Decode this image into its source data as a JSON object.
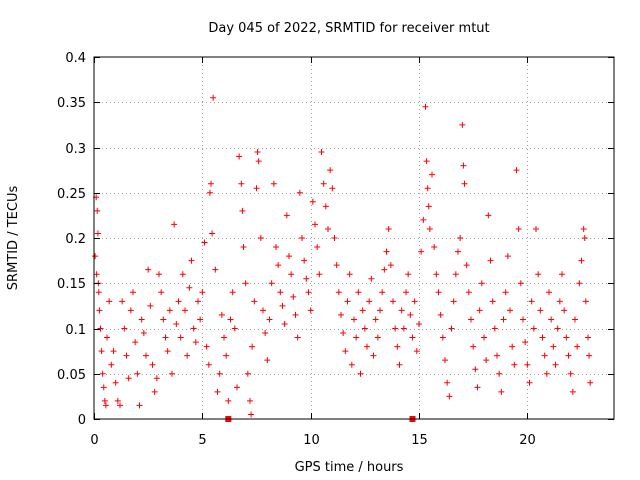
{
  "chart_data": {
    "type": "scatter",
    "title": "Day 045 of 2022, SRMTID for receiver mtut",
    "xlabel": "GPS time / hours",
    "ylabel": "SRMTID / TECUs",
    "xlim": [
      0,
      24
    ],
    "ylim": [
      0,
      0.4
    ],
    "xticks": [
      0,
      5,
      10,
      15,
      20
    ],
    "xtick_labels": [
      "0",
      "5",
      "10",
      "15",
      "20"
    ],
    "yticks": [
      0,
      0.05,
      0.1,
      0.15,
      0.2,
      0.25,
      0.3,
      0.35,
      0.4
    ],
    "ytick_labels": [
      "0",
      "0.05",
      "0.1",
      "0.15",
      "0.2",
      "0.25",
      "0.3",
      "0.35",
      "0.4"
    ],
    "grid": true,
    "legend": "none",
    "series": [
      {
        "color": "#ff0000",
        "marker": "plus",
        "points": [
          [
            0.05,
            0.18
          ],
          [
            0.1,
            0.245
          ],
          [
            0.12,
            0.16
          ],
          [
            0.15,
            0.23
          ],
          [
            0.18,
            0.205
          ],
          [
            0.2,
            0.15
          ],
          [
            0.22,
            0.14
          ],
          [
            0.25,
            0.12
          ],
          [
            0.3,
            0.1
          ],
          [
            0.35,
            0.075
          ],
          [
            0.4,
            0.05
          ],
          [
            0.45,
            0.035
          ],
          [
            0.5,
            0.02
          ],
          [
            0.55,
            0.015
          ],
          [
            0.6,
            0.09
          ],
          [
            0.7,
            0.13
          ],
          [
            0.8,
            0.06
          ],
          [
            0.9,
            0.075
          ],
          [
            1.0,
            0.04
          ],
          [
            1.1,
            0.02
          ],
          [
            1.2,
            0.015
          ],
          [
            1.3,
            0.13
          ],
          [
            1.4,
            0.1
          ],
          [
            1.5,
            0.07
          ],
          [
            1.6,
            0.045
          ],
          [
            1.7,
            0.12
          ],
          [
            1.8,
            0.14
          ],
          [
            1.9,
            0.085
          ],
          [
            2.0,
            0.05
          ],
          [
            2.1,
            0.015
          ],
          [
            2.2,
            0.11
          ],
          [
            2.3,
            0.095
          ],
          [
            2.4,
            0.07
          ],
          [
            2.5,
            0.165
          ],
          [
            2.6,
            0.125
          ],
          [
            2.7,
            0.06
          ],
          [
            2.8,
            0.03
          ],
          [
            2.9,
            0.045
          ],
          [
            3.0,
            0.16
          ],
          [
            3.1,
            0.14
          ],
          [
            3.2,
            0.11
          ],
          [
            3.3,
            0.09
          ],
          [
            3.4,
            0.075
          ],
          [
            3.5,
            0.12
          ],
          [
            3.6,
            0.05
          ],
          [
            3.7,
            0.215
          ],
          [
            3.8,
            0.105
          ],
          [
            3.9,
            0.13
          ],
          [
            4.0,
            0.09
          ],
          [
            4.1,
            0.16
          ],
          [
            4.2,
            0.12
          ],
          [
            4.3,
            0.07
          ],
          [
            4.4,
            0.145
          ],
          [
            4.5,
            0.175
          ],
          [
            4.6,
            0.1
          ],
          [
            4.7,
            0.085
          ],
          [
            4.8,
            0.13
          ],
          [
            4.9,
            0.11
          ],
          [
            5.0,
            0.14
          ],
          [
            5.1,
            0.195
          ],
          [
            5.2,
            0.08
          ],
          [
            5.3,
            0.06
          ],
          [
            5.35,
            0.25
          ],
          [
            5.4,
            0.26
          ],
          [
            5.45,
            0.205
          ],
          [
            5.5,
            0.355
          ],
          [
            5.6,
            0.165
          ],
          [
            5.7,
            0.03
          ],
          [
            5.8,
            0.05
          ],
          [
            5.9,
            0.115
          ],
          [
            6.0,
            0.09
          ],
          [
            6.1,
            0.07
          ],
          [
            6.2,
            0.02
          ],
          [
            6.3,
            0.11
          ],
          [
            6.4,
            0.14
          ],
          [
            6.5,
            0.1
          ],
          [
            6.6,
            0.035
          ],
          [
            6.7,
            0.29
          ],
          [
            6.8,
            0.26
          ],
          [
            6.85,
            0.23
          ],
          [
            6.9,
            0.19
          ],
          [
            7.0,
            0.15
          ],
          [
            7.1,
            0.05
          ],
          [
            7.2,
            0.02
          ],
          [
            7.25,
            0.005
          ],
          [
            7.3,
            0.08
          ],
          [
            7.4,
            0.13
          ],
          [
            7.5,
            0.255
          ],
          [
            7.55,
            0.295
          ],
          [
            7.6,
            0.285
          ],
          [
            7.7,
            0.2
          ],
          [
            7.8,
            0.12
          ],
          [
            7.9,
            0.095
          ],
          [
            8.0,
            0.065
          ],
          [
            8.1,
            0.11
          ],
          [
            8.2,
            0.15
          ],
          [
            8.3,
            0.26
          ],
          [
            8.4,
            0.19
          ],
          [
            8.5,
            0.17
          ],
          [
            8.6,
            0.14
          ],
          [
            8.7,
            0.125
          ],
          [
            8.8,
            0.105
          ],
          [
            8.9,
            0.225
          ],
          [
            9.0,
            0.18
          ],
          [
            9.1,
            0.16
          ],
          [
            9.2,
            0.135
          ],
          [
            9.3,
            0.115
          ],
          [
            9.4,
            0.09
          ],
          [
            9.5,
            0.25
          ],
          [
            9.6,
            0.2
          ],
          [
            9.7,
            0.175
          ],
          [
            9.8,
            0.155
          ],
          [
            9.9,
            0.14
          ],
          [
            10.0,
            0.12
          ],
          [
            10.1,
            0.24
          ],
          [
            10.2,
            0.215
          ],
          [
            10.3,
            0.19
          ],
          [
            10.4,
            0.16
          ],
          [
            10.5,
            0.295
          ],
          [
            10.6,
            0.26
          ],
          [
            10.7,
            0.235
          ],
          [
            10.8,
            0.21
          ],
          [
            10.9,
            0.275
          ],
          [
            11.0,
            0.255
          ],
          [
            11.1,
            0.2
          ],
          [
            11.2,
            0.17
          ],
          [
            11.3,
            0.14
          ],
          [
            11.4,
            0.115
          ],
          [
            11.5,
            0.095
          ],
          [
            11.6,
            0.075
          ],
          [
            11.7,
            0.13
          ],
          [
            11.8,
            0.16
          ],
          [
            11.9,
            0.06
          ],
          [
            12.0,
            0.11
          ],
          [
            12.1,
            0.09
          ],
          [
            12.2,
            0.14
          ],
          [
            12.3,
            0.05
          ],
          [
            12.4,
            0.12
          ],
          [
            12.5,
            0.1
          ],
          [
            12.6,
            0.08
          ],
          [
            12.7,
            0.13
          ],
          [
            12.8,
            0.155
          ],
          [
            12.9,
            0.07
          ],
          [
            13.0,
            0.11
          ],
          [
            13.1,
            0.09
          ],
          [
            13.2,
            0.12
          ],
          [
            13.3,
            0.14
          ],
          [
            13.4,
            0.165
          ],
          [
            13.5,
            0.185
          ],
          [
            13.6,
            0.21
          ],
          [
            13.7,
            0.17
          ],
          [
            13.8,
            0.13
          ],
          [
            13.9,
            0.1
          ],
          [
            14.0,
            0.08
          ],
          [
            14.1,
            0.06
          ],
          [
            14.2,
            0.12
          ],
          [
            14.3,
            0.1
          ],
          [
            14.4,
            0.14
          ],
          [
            14.5,
            0.16
          ],
          [
            14.6,
            0.115
          ],
          [
            14.7,
            0.09
          ],
          [
            14.8,
            0.13
          ],
          [
            14.9,
            0.075
          ],
          [
            15.0,
            0.105
          ],
          [
            15.1,
            0.185
          ],
          [
            15.2,
            0.22
          ],
          [
            15.3,
            0.345
          ],
          [
            15.35,
            0.285
          ],
          [
            15.4,
            0.255
          ],
          [
            15.45,
            0.235
          ],
          [
            15.5,
            0.21
          ],
          [
            15.6,
            0.27
          ],
          [
            15.7,
            0.19
          ],
          [
            15.8,
            0.16
          ],
          [
            15.9,
            0.14
          ],
          [
            16.0,
            0.115
          ],
          [
            16.1,
            0.09
          ],
          [
            16.2,
            0.065
          ],
          [
            16.3,
            0.04
          ],
          [
            16.4,
            0.025
          ],
          [
            16.5,
            0.1
          ],
          [
            16.6,
            0.13
          ],
          [
            16.7,
            0.16
          ],
          [
            16.8,
            0.185
          ],
          [
            16.9,
            0.2
          ],
          [
            17.0,
            0.325
          ],
          [
            17.05,
            0.28
          ],
          [
            17.1,
            0.26
          ],
          [
            17.2,
            0.17
          ],
          [
            17.3,
            0.14
          ],
          [
            17.4,
            0.11
          ],
          [
            17.5,
            0.08
          ],
          [
            17.6,
            0.055
          ],
          [
            17.7,
            0.035
          ],
          [
            17.8,
            0.12
          ],
          [
            17.9,
            0.15
          ],
          [
            18.0,
            0.09
          ],
          [
            18.1,
            0.065
          ],
          [
            18.2,
            0.225
          ],
          [
            18.3,
            0.175
          ],
          [
            18.4,
            0.13
          ],
          [
            18.5,
            0.1
          ],
          [
            18.6,
            0.07
          ],
          [
            18.7,
            0.05
          ],
          [
            18.8,
            0.03
          ],
          [
            18.9,
            0.11
          ],
          [
            19.0,
            0.14
          ],
          [
            19.1,
            0.18
          ],
          [
            19.2,
            0.12
          ],
          [
            19.3,
            0.08
          ],
          [
            19.4,
            0.06
          ],
          [
            19.5,
            0.275
          ],
          [
            19.6,
            0.21
          ],
          [
            19.7,
            0.15
          ],
          [
            19.8,
            0.11
          ],
          [
            19.9,
            0.085
          ],
          [
            20.0,
            0.06
          ],
          [
            20.1,
            0.04
          ],
          [
            20.2,
            0.13
          ],
          [
            20.3,
            0.1
          ],
          [
            20.4,
            0.21
          ],
          [
            20.5,
            0.16
          ],
          [
            20.6,
            0.12
          ],
          [
            20.7,
            0.09
          ],
          [
            20.8,
            0.07
          ],
          [
            20.9,
            0.05
          ],
          [
            21.0,
            0.14
          ],
          [
            21.1,
            0.11
          ],
          [
            21.2,
            0.08
          ],
          [
            21.3,
            0.06
          ],
          [
            21.4,
            0.1
          ],
          [
            21.5,
            0.13
          ],
          [
            21.6,
            0.16
          ],
          [
            21.7,
            0.12
          ],
          [
            21.8,
            0.09
          ],
          [
            21.9,
            0.07
          ],
          [
            22.0,
            0.05
          ],
          [
            22.1,
            0.03
          ],
          [
            22.2,
            0.11
          ],
          [
            22.3,
            0.08
          ],
          [
            22.4,
            0.15
          ],
          [
            22.5,
            0.175
          ],
          [
            22.6,
            0.21
          ],
          [
            22.65,
            0.2
          ],
          [
            22.7,
            0.13
          ],
          [
            22.8,
            0.09
          ],
          [
            22.85,
            0.07
          ],
          [
            22.9,
            0.04
          ]
        ]
      },
      {
        "color": "#ff0000",
        "marker": "square",
        "points": [
          [
            6.2,
            0.0
          ],
          [
            14.7,
            0.0
          ]
        ]
      }
    ]
  }
}
